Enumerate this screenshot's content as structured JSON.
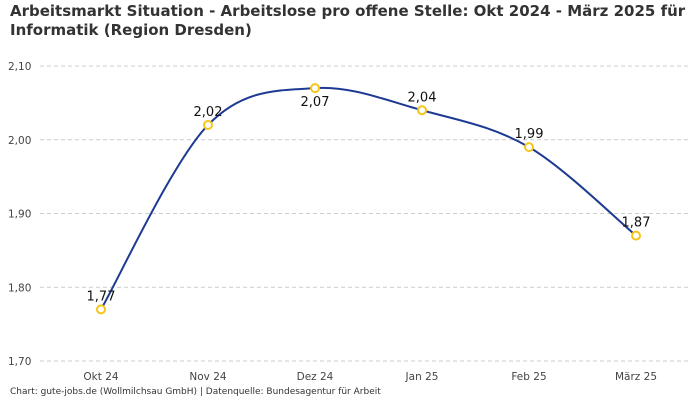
{
  "chart_data": {
    "type": "line",
    "title_line1": "Arbeitsmarkt Situation - Arbeitslose pro offene Stelle: Okt 2024 - März 2025 für",
    "title_line2": "Informatik (Region Dresden)",
    "categories": [
      "Okt 24",
      "Nov 24",
      "Dez 24",
      "Jan 25",
      "Feb 25",
      "März 25"
    ],
    "values": [
      1.77,
      2.02,
      2.07,
      2.04,
      1.99,
      1.87
    ],
    "value_labels": [
      "1,77",
      "2,02",
      "2,07",
      "2,04",
      "1,99",
      "1,87"
    ],
    "label_positions": [
      "above",
      "above",
      "below",
      "above",
      "above",
      "above"
    ],
    "ylim": [
      1.7,
      2.1
    ],
    "yticks": [
      1.7,
      1.8,
      1.9,
      2.0,
      2.1
    ],
    "ytick_labels": [
      "1,70",
      "1,80",
      "1,90",
      "2,00",
      "2,10"
    ],
    "grid": true,
    "xlabel": "",
    "ylabel": "",
    "line_color": "#1f3a93",
    "marker_color": "#f5c518",
    "grid_color": "#cccccc"
  },
  "footer": {
    "source": "Chart: gute-jobs.de (Wollmilchsau GmbH) | Datenquelle: Bundesagentur für Arbeit"
  }
}
